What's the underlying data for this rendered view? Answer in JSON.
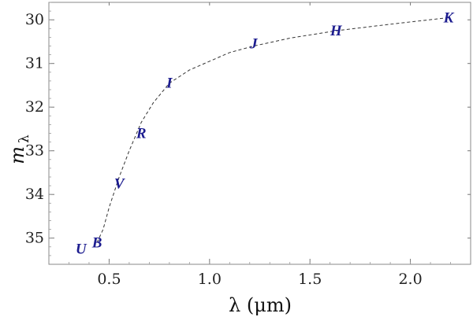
{
  "chart_data": {
    "type": "line",
    "title": "",
    "xlabel": "λ (μm)",
    "ylabel": "m",
    "ylabel_subscript": "λ",
    "xlim": [
      0.2,
      2.3
    ],
    "ylim": [
      35.6,
      29.6
    ],
    "y_inverted": true,
    "grid": false,
    "line_style": "dashed",
    "line_color": "#333333",
    "label_color": "#1c1c8f",
    "x_ticks": [
      0.5,
      1.0,
      1.5,
      2.0
    ],
    "x_tick_labels": [
      "0.5",
      "1.0",
      "1.5",
      "2.0"
    ],
    "y_ticks": [
      30,
      31,
      32,
      33,
      34,
      35
    ],
    "y_tick_labels": [
      "30",
      "31",
      "32",
      "33",
      "34",
      "35"
    ],
    "points": [
      {
        "label": "U",
        "x": 0.36,
        "y": 35.25
      },
      {
        "label": "B",
        "x": 0.44,
        "y": 35.1
      },
      {
        "label": "V",
        "x": 0.55,
        "y": 33.75
      },
      {
        "label": "R",
        "x": 0.66,
        "y": 32.6
      },
      {
        "label": "I",
        "x": 0.8,
        "y": 31.45
      },
      {
        "label": "J",
        "x": 1.22,
        "y": 30.55
      },
      {
        "label": "H",
        "x": 1.63,
        "y": 30.25
      },
      {
        "label": "K",
        "x": 2.19,
        "y": 29.95
      }
    ],
    "curve": {
      "x": [
        0.44,
        0.47,
        0.5,
        0.55,
        0.6,
        0.66,
        0.72,
        0.8,
        0.9,
        1.0,
        1.1,
        1.22,
        1.4,
        1.63,
        1.9,
        2.19
      ],
      "y": [
        35.1,
        34.8,
        34.3,
        33.6,
        33.0,
        32.35,
        31.9,
        31.45,
        31.15,
        30.95,
        30.75,
        30.6,
        30.42,
        30.25,
        30.1,
        29.95
      ]
    }
  }
}
